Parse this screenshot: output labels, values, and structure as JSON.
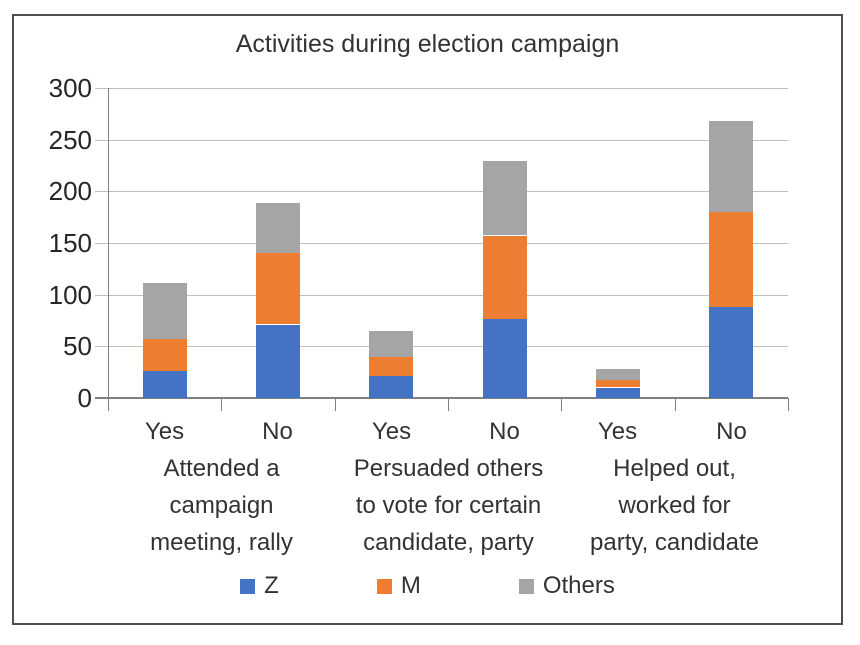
{
  "window": {
    "background": "#ffffff",
    "frame_border_color": "#4f4f4f"
  },
  "chart_data": {
    "type": "bar",
    "stacked": true,
    "title": "Activities during election campaign",
    "categories": [
      "Yes",
      "No",
      "Yes",
      "No",
      "Yes",
      "No"
    ],
    "group_labels": [
      [
        "Attended a",
        "campaign",
        "meeting, rally"
      ],
      [
        "Persuaded others",
        "to vote for certain",
        "candidate, party"
      ],
      [
        "Helped out,",
        "worked for",
        "party, candidate"
      ]
    ],
    "series": [
      {
        "name": "Z",
        "color": "#4472C4",
        "values": [
          26,
          71,
          22,
          77,
          10,
          88
        ]
      },
      {
        "name": "M",
        "color": "#ED7D31",
        "values": [
          31,
          70,
          18,
          80,
          7,
          92
        ]
      },
      {
        "name": "Others",
        "color": "#A5A5A5",
        "values": [
          54,
          48,
          25,
          72,
          11,
          88
        ]
      }
    ],
    "bar_totals": [
      111,
      189,
      65,
      229,
      28,
      268
    ],
    "xlabel": "",
    "ylabel": "",
    "ylim": [
      0,
      300
    ],
    "yticks": [
      0,
      50,
      100,
      150,
      200,
      250,
      300
    ],
    "grid": true,
    "legend_position": "bottom",
    "legend_labels": [
      "Z",
      "M",
      "Others"
    ],
    "gridline_color": "#BFBFBF",
    "axis_color": "#7F7F7F",
    "text_color": "#333333"
  }
}
